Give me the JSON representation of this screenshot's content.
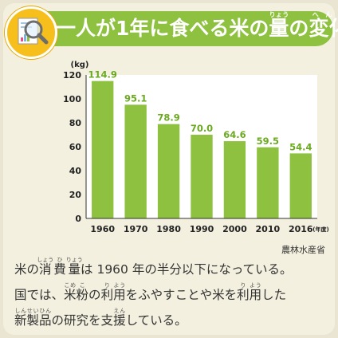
{
  "header": {
    "title_before": "一人が1年に食べる米の",
    "title_ruby_1_base": "量",
    "title_ruby_1_rt": "りょう",
    "title_mid": "の",
    "title_ruby_2_base": "変化",
    "title_ruby_2_rt": "へんか",
    "icon": "magnifier-report-icon",
    "accent_color": "#8dc13f",
    "badge_color": "#f6bf1c"
  },
  "chart_data": {
    "type": "bar",
    "title": "",
    "ylabel": "(kg)",
    "xlabel": "",
    "categories": [
      "1960",
      "1970",
      "1980",
      "1990",
      "2000",
      "2010",
      "2016"
    ],
    "category_suffix_last": "(年度)",
    "values": [
      114.9,
      95.1,
      78.9,
      70.0,
      64.6,
      59.5,
      54.4
    ],
    "value_labels": [
      "114.9",
      "95.1",
      "78.9",
      "70.0",
      "64.6",
      "59.5",
      "54.4"
    ],
    "y_ticks": [
      "0",
      "20",
      "40",
      "60",
      "80",
      "100",
      "120"
    ],
    "ylim": [
      0,
      120
    ],
    "grid": false,
    "bar_color": "#8dc13f",
    "label_color": "#6aaa1e",
    "plot_bg": "#ffffff"
  },
  "source": "農林水産省",
  "text": {
    "line1_a": "米の",
    "ruby_shouhiryou": [
      {
        "base": "消",
        "rt": "しょう"
      },
      {
        "base": "費",
        "rt": "ひ"
      },
      {
        "base": "量",
        "rt": "りょう"
      }
    ],
    "line1_b": "は 1960 年の半分以下になっている。",
    "line2_a": "国では、",
    "ruby_komeko": [
      {
        "base": "米",
        "rt": "こめ"
      },
      {
        "base": "粉",
        "rt": "こ"
      }
    ],
    "line2_b": "の",
    "ruby_riyou1": [
      {
        "base": "利",
        "rt": "り"
      },
      {
        "base": "用",
        "rt": "よう"
      }
    ],
    "line2_c": "をふやすことや米を",
    "ruby_riyou2": [
      {
        "base": "利",
        "rt": "り"
      },
      {
        "base": "用",
        "rt": "よう"
      }
    ],
    "line2_d": "した",
    "ruby_shinseihin": [
      {
        "base": "新",
        "rt": "しん"
      },
      {
        "base": "製",
        "rt": "せい"
      },
      {
        "base": "品",
        "rt": "ひん"
      }
    ],
    "line3_b": "の研究を支",
    "ruby_en": [
      {
        "base": "援",
        "rt": "えん"
      }
    ],
    "line3_c": "している。"
  }
}
